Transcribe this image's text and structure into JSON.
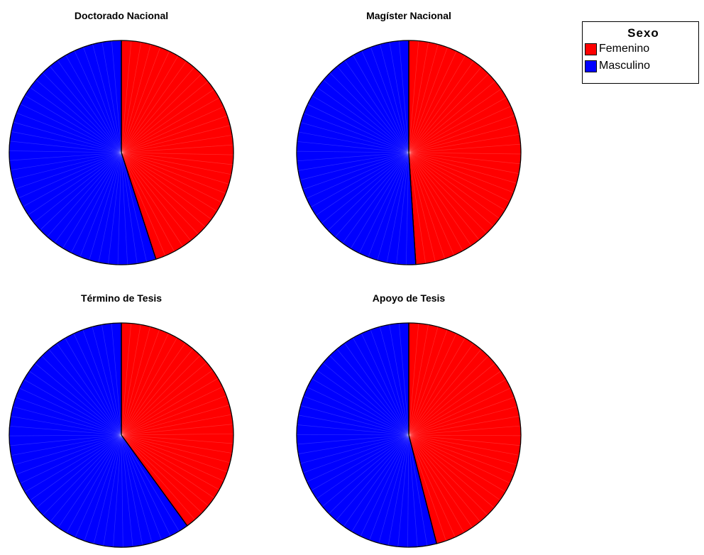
{
  "legend": {
    "title": "Sexo",
    "entries": [
      {
        "label": "Femenino",
        "color": "#ff0000"
      },
      {
        "label": "Masculino",
        "color": "#0000ff"
      }
    ]
  },
  "chart_data": [
    {
      "type": "pie",
      "title": "Doctorado Nacional",
      "labels": [
        "Femenino",
        "Masculino"
      ],
      "values": [
        45,
        55
      ],
      "colors": [
        "#ff0000",
        "#0000ff"
      ]
    },
    {
      "type": "pie",
      "title": "Magíster Nacional",
      "labels": [
        "Femenino",
        "Masculino"
      ],
      "values": [
        49,
        51
      ],
      "colors": [
        "#ff0000",
        "#0000ff"
      ]
    },
    {
      "type": "pie",
      "title": "Término de Tesis",
      "labels": [
        "Femenino",
        "Masculino"
      ],
      "values": [
        40,
        60
      ],
      "colors": [
        "#ff0000",
        "#0000ff"
      ]
    },
    {
      "type": "pie",
      "title": "Apoyo de Tesis",
      "labels": [
        "Femenino",
        "Masculino"
      ],
      "values": [
        46,
        54
      ],
      "colors": [
        "#ff0000",
        "#0000ff"
      ]
    }
  ]
}
